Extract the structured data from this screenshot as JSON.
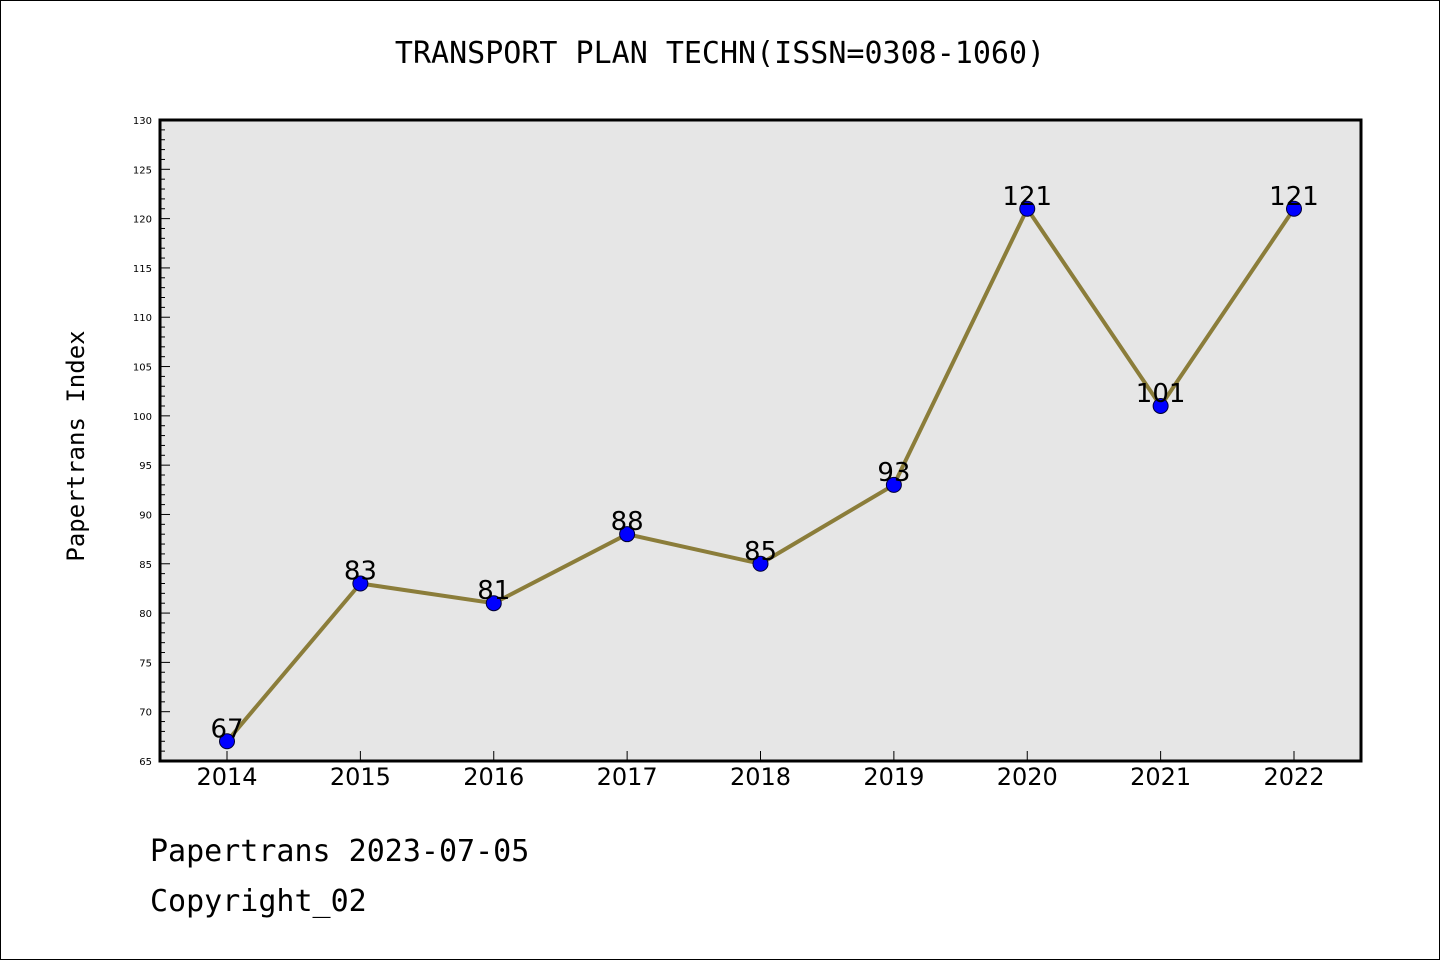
{
  "title": "TRANSPORT PLAN TECHN(ISSN=0308-1060)",
  "footer": {
    "date_line": "Papertrans 2023-07-05",
    "copyright_line": "Copyright_02"
  },
  "colors": {
    "line": "#8b7d3a",
    "marker": "#0000ff",
    "plot_bg": "#e6e6e6"
  },
  "chart_data": {
    "type": "line",
    "title": "TRANSPORT PLAN TECHN(ISSN=0308-1060)",
    "xlabel": "",
    "ylabel": "Papertrans Index",
    "categories": [
      "2014",
      "2015",
      "2016",
      "2017",
      "2018",
      "2019",
      "2020",
      "2021",
      "2022"
    ],
    "values": [
      67,
      83,
      81,
      88,
      85,
      93,
      121,
      101,
      121
    ],
    "data_labels": [
      "67",
      "83",
      "81",
      "88",
      "85",
      "93",
      "121",
      "101",
      "121"
    ],
    "ylim": [
      65,
      130
    ],
    "yticks": [
      65,
      70,
      75,
      80,
      85,
      90,
      95,
      100,
      105,
      110,
      115,
      120,
      125,
      130
    ],
    "grid": false,
    "legend": "none"
  }
}
